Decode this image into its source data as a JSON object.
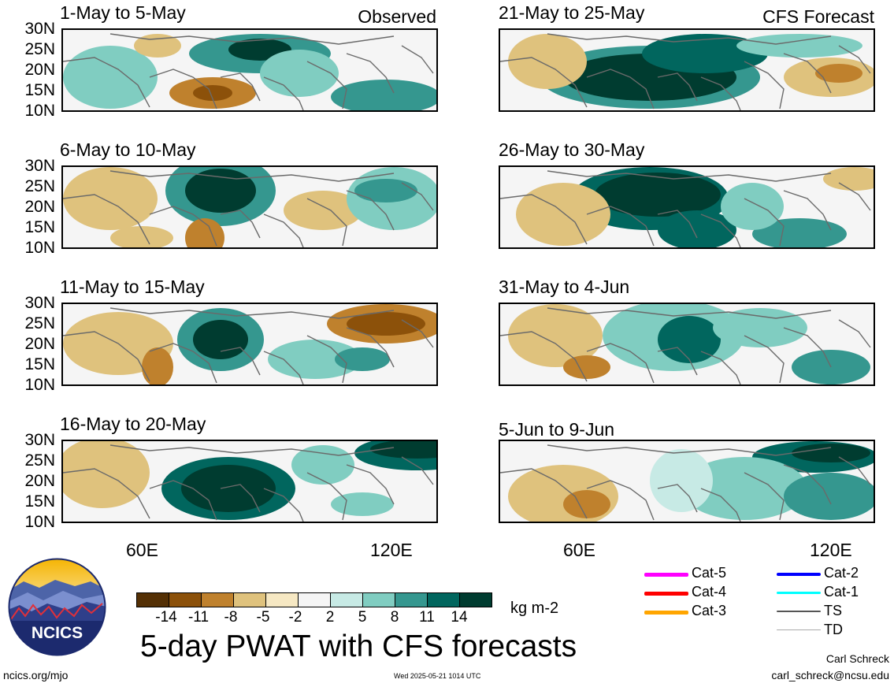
{
  "main_title": "5-day PWAT with CFS forecasts",
  "units": "kg m-2",
  "tags": {
    "observed": "Observed",
    "forecast": "CFS Forecast"
  },
  "panels": [
    {
      "title": "1-May to 5-May",
      "type": "observed"
    },
    {
      "title": "6-May to 10-May",
      "type": "observed"
    },
    {
      "title": "11-May to 15-May",
      "type": "observed"
    },
    {
      "title": "16-May to 20-May",
      "type": "observed"
    },
    {
      "title": "21-May to 25-May",
      "type": "forecast"
    },
    {
      "title": "26-May to 30-May",
      "type": "forecast"
    },
    {
      "title": "31-May to 4-Jun",
      "type": "forecast"
    },
    {
      "title": "5-Jun to 9-Jun",
      "type": "forecast"
    }
  ],
  "lat_labels": [
    "30N",
    "25N",
    "20N",
    "15N",
    "10N"
  ],
  "lon_labels": [
    "60E",
    "120E"
  ],
  "colorbar": {
    "ticks": [
      "-14",
      "-11",
      "-8",
      "-5",
      "-2",
      "2",
      "5",
      "8",
      "11",
      "14"
    ],
    "colors": [
      "#543005",
      "#8c510a",
      "#bf812d",
      "#dfc27d",
      "#f6e8c3",
      "#f5f5f5",
      "#c7eae5",
      "#80cdc1",
      "#35978f",
      "#01665e",
      "#003c30"
    ]
  },
  "legend": [
    {
      "label": "Cat-5",
      "color": "#ff00ff"
    },
    {
      "label": "Cat-4",
      "color": "#ff0000"
    },
    {
      "label": "Cat-3",
      "color": "#ffa500"
    },
    {
      "label": "Cat-2",
      "color": "#0000ff"
    },
    {
      "label": "Cat-1",
      "color": "#00ffff"
    },
    {
      "label": "TS",
      "color": "#555555"
    },
    {
      "label": "TD",
      "color": "#aaaaaa"
    }
  ],
  "logo_text": "NCICS",
  "footer": {
    "left": "ncics.org/mjo",
    "timestamp": "Wed 2025-05-21 1014 UTC",
    "author_name": "Carl Schreck",
    "author_email": "carl_schreck@ncsu.edu"
  }
}
